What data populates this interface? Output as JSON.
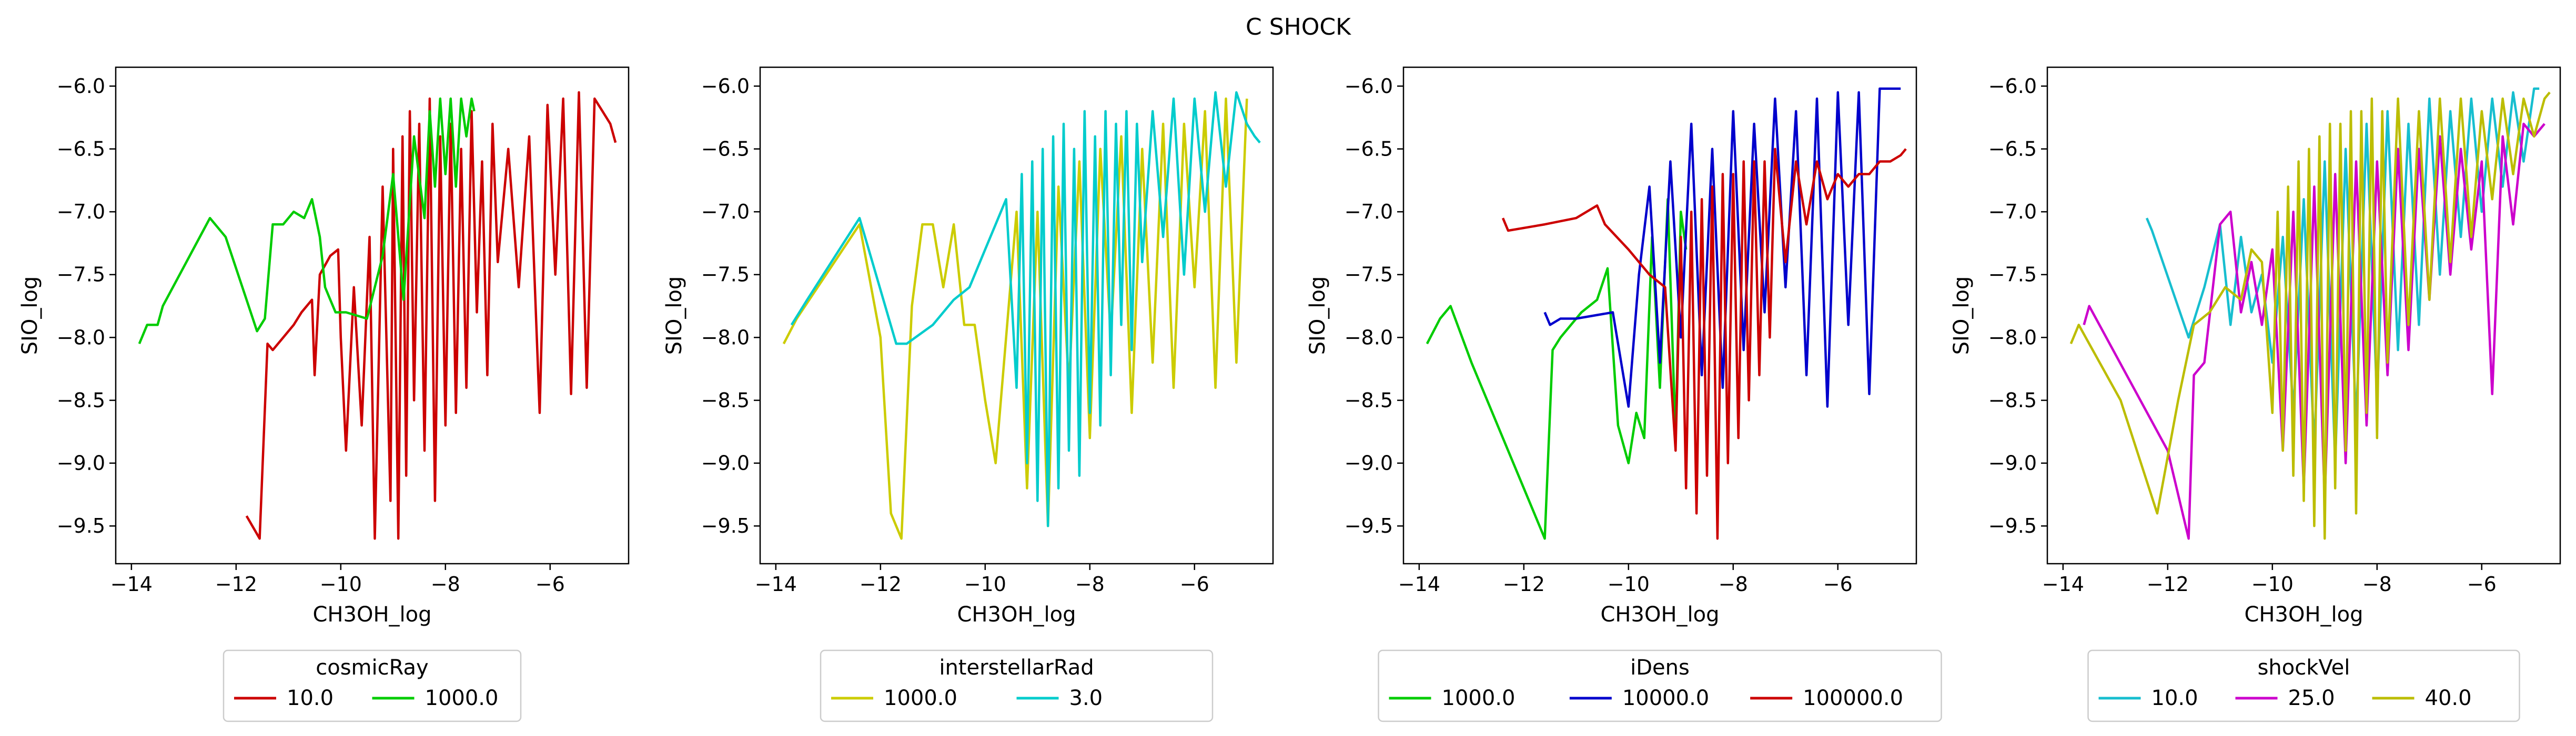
{
  "figure": {
    "title": "C SHOCK"
  },
  "chart_data": [
    {
      "type": "line",
      "xlabel": "CH3OH_log",
      "ylabel": "SIO_log",
      "xlim": [
        -14.3,
        -4.5
      ],
      "ylim": [
        -9.8,
        -5.85
      ],
      "xticks": [
        -14,
        -12,
        -10,
        -8,
        -6
      ],
      "yticks": [
        -9.5,
        -9.0,
        -8.5,
        -8.0,
        -7.5,
        -7.0,
        -6.5,
        -6.0
      ],
      "xtick_labels": [
        "−14",
        "−12",
        "−10",
        "−8",
        "−6"
      ],
      "ytick_labels": [
        "−9.5",
        "−9.0",
        "−8.5",
        "−8.0",
        "−7.5",
        "−7.0",
        "−6.5",
        "−6.0"
      ],
      "legend": {
        "title": "cosmicRay",
        "placement": "below"
      },
      "series": [
        {
          "name": "10.0",
          "color": "#cc0000",
          "x": [
            -11.8,
            -11.55,
            -11.4,
            -11.3,
            -11.1,
            -10.9,
            -10.75,
            -10.55,
            -10.5,
            -10.4,
            -10.2,
            -10.05,
            -10.0,
            -9.9,
            -9.75,
            -9.6,
            -9.45,
            -9.35,
            -9.2,
            -9.05,
            -9.0,
            -8.9,
            -8.82,
            -8.75,
            -8.68,
            -8.6,
            -8.5,
            -8.4,
            -8.3,
            -8.2,
            -8.1,
            -8.0,
            -7.9,
            -7.8,
            -7.7,
            -7.6,
            -7.5,
            -7.4,
            -7.3,
            -7.2,
            -7.1,
            -7.0,
            -6.8,
            -6.6,
            -6.4,
            -6.2,
            -6.05,
            -5.9,
            -5.75,
            -5.6,
            -5.45,
            -5.3,
            -5.15,
            -5.0,
            -4.85,
            -4.75
          ],
          "y": [
            -9.42,
            -9.6,
            -8.05,
            -8.1,
            -8.0,
            -7.9,
            -7.8,
            -7.7,
            -8.3,
            -7.5,
            -7.35,
            -7.3,
            -8.0,
            -8.9,
            -7.6,
            -8.7,
            -7.2,
            -9.6,
            -6.8,
            -9.3,
            -6.5,
            -9.6,
            -6.4,
            -9.1,
            -6.2,
            -8.5,
            -6.3,
            -8.9,
            -6.1,
            -9.3,
            -6.4,
            -8.7,
            -6.3,
            -8.6,
            -6.5,
            -8.4,
            -6.2,
            -7.8,
            -6.6,
            -8.3,
            -6.3,
            -7.4,
            -6.5,
            -7.6,
            -6.4,
            -8.6,
            -6.15,
            -7.5,
            -6.1,
            -8.45,
            -6.05,
            -8.4,
            -6.1,
            -6.2,
            -6.3,
            -6.45
          ]
        },
        {
          "name": "1000.0",
          "color": "#00cc00",
          "x": [
            -13.85,
            -13.7,
            -13.5,
            -13.4,
            -12.5,
            -12.2,
            -11.8,
            -11.6,
            -11.45,
            -11.3,
            -11.1,
            -10.9,
            -10.7,
            -10.55,
            -10.4,
            -10.3,
            -10.2,
            -10.1,
            -9.9,
            -9.5,
            -9.2,
            -9.0,
            -8.8,
            -8.6,
            -8.4,
            -8.3,
            -8.2,
            -8.1,
            -8.0,
            -7.9,
            -7.8,
            -7.7,
            -7.6,
            -7.5,
            -7.45
          ],
          "y": [
            -8.05,
            -7.9,
            -7.9,
            -7.75,
            -7.05,
            -7.2,
            -7.7,
            -7.95,
            -7.85,
            -7.1,
            -7.1,
            -7.0,
            -7.05,
            -6.9,
            -7.2,
            -7.6,
            -7.7,
            -7.8,
            -7.8,
            -7.85,
            -7.35,
            -6.7,
            -7.7,
            -6.4,
            -7.05,
            -6.2,
            -6.8,
            -6.1,
            -6.7,
            -6.1,
            -6.8,
            -6.1,
            -6.4,
            -6.1,
            -6.2
          ]
        }
      ]
    },
    {
      "type": "line",
      "xlabel": "CH3OH_log",
      "ylabel": "SIO_log",
      "xlim": [
        -14.3,
        -4.5
      ],
      "ylim": [
        -9.8,
        -5.85
      ],
      "xticks": [
        -14,
        -12,
        -10,
        -8,
        -6
      ],
      "yticks": [
        -9.5,
        -9.0,
        -8.5,
        -8.0,
        -7.5,
        -7.0,
        -6.5,
        -6.0
      ],
      "xtick_labels": [
        "−14",
        "−12",
        "−10",
        "−8",
        "−6"
      ],
      "ytick_labels": [
        "−9.5",
        "−9.0",
        "−8.5",
        "−8.0",
        "−7.5",
        "−7.0",
        "−6.5",
        "−6.0"
      ],
      "legend": {
        "title": "interstellarRad",
        "placement": "below"
      },
      "series": [
        {
          "name": "1000.0",
          "color": "#cccc00",
          "x": [
            -13.85,
            -13.6,
            -12.4,
            -12.0,
            -11.8,
            -11.6,
            -11.4,
            -11.2,
            -11.0,
            -10.8,
            -10.6,
            -10.4,
            -10.2,
            -10.0,
            -9.8,
            -9.6,
            -9.4,
            -9.2,
            -9.0,
            -8.8,
            -8.6,
            -8.4,
            -8.2,
            -8.0,
            -7.8,
            -7.6,
            -7.4,
            -7.2,
            -7.0,
            -6.8,
            -6.6,
            -6.4,
            -6.2,
            -6.0,
            -5.8,
            -5.6,
            -5.4,
            -5.2,
            -5.0
          ],
          "y": [
            -8.05,
            -7.85,
            -7.1,
            -8.0,
            -9.4,
            -9.6,
            -7.75,
            -7.1,
            -7.1,
            -7.6,
            -7.1,
            -7.9,
            -7.9,
            -8.5,
            -9.0,
            -8.0,
            -7.0,
            -9.2,
            -7.0,
            -9.5,
            -6.8,
            -8.4,
            -6.6,
            -8.8,
            -6.5,
            -8.0,
            -6.4,
            -8.6,
            -6.5,
            -8.2,
            -6.3,
            -8.4,
            -6.3,
            -7.6,
            -6.2,
            -8.4,
            -6.1,
            -8.2,
            -6.1
          ]
        },
        {
          "name": "3.0",
          "color": "#00cccc",
          "x": [
            -13.7,
            -13.4,
            -12.4,
            -11.7,
            -11.5,
            -11.0,
            -10.6,
            -10.3,
            -10.0,
            -9.8,
            -9.6,
            -9.4,
            -9.3,
            -9.2,
            -9.1,
            -9.0,
            -8.9,
            -8.8,
            -8.7,
            -8.6,
            -8.5,
            -8.4,
            -8.3,
            -8.2,
            -8.1,
            -8.0,
            -7.9,
            -7.8,
            -7.7,
            -7.6,
            -7.5,
            -7.4,
            -7.3,
            -7.2,
            -7.1,
            -7.0,
            -6.8,
            -6.6,
            -6.4,
            -6.2,
            -6.0,
            -5.8,
            -5.6,
            -5.4,
            -5.2,
            -5.0,
            -4.85,
            -4.75
          ],
          "y": [
            -7.9,
            -7.7,
            -7.05,
            -8.05,
            -8.05,
            -7.9,
            -7.7,
            -7.6,
            -7.3,
            -7.1,
            -6.9,
            -8.4,
            -6.7,
            -9.0,
            -6.6,
            -9.3,
            -6.5,
            -9.5,
            -6.4,
            -9.2,
            -6.3,
            -8.9,
            -6.5,
            -9.1,
            -6.2,
            -8.6,
            -6.4,
            -8.7,
            -6.2,
            -8.3,
            -6.3,
            -7.9,
            -6.2,
            -8.1,
            -6.3,
            -7.4,
            -6.2,
            -7.2,
            -6.1,
            -7.5,
            -6.1,
            -7.0,
            -6.05,
            -6.8,
            -6.05,
            -6.3,
            -6.4,
            -6.45
          ]
        }
      ]
    },
    {
      "type": "line",
      "xlabel": "CH3OH_log",
      "ylabel": "SIO_log",
      "xlim": [
        -14.3,
        -4.5
      ],
      "ylim": [
        -9.8,
        -5.85
      ],
      "xticks": [
        -14,
        -12,
        -10,
        -8,
        -6
      ],
      "yticks": [
        -9.5,
        -9.0,
        -8.5,
        -8.0,
        -7.5,
        -7.0,
        -6.5,
        -6.0
      ],
      "xtick_labels": [
        "−14",
        "−12",
        "−10",
        "−8",
        "−6"
      ],
      "ytick_labels": [
        "−9.5",
        "−9.0",
        "−8.5",
        "−8.0",
        "−7.5",
        "−7.0",
        "−6.5",
        "−6.0"
      ],
      "legend": {
        "title": "iDens",
        "placement": "below"
      },
      "series": [
        {
          "name": "1000.0",
          "color": "#00cc00",
          "x": [
            -13.85,
            -13.6,
            -13.4,
            -13.0,
            -12.2,
            -11.8,
            -11.6,
            -11.45,
            -11.3,
            -11.1,
            -10.9,
            -10.6,
            -10.4,
            -10.2,
            -10.0,
            -9.85,
            -9.7,
            -9.55,
            -9.4,
            -9.25,
            -9.1,
            -9.0,
            -8.9
          ],
          "y": [
            -8.05,
            -7.85,
            -7.75,
            -8.2,
            -9.0,
            -9.4,
            -9.6,
            -8.1,
            -8.0,
            -7.9,
            -7.8,
            -7.7,
            -7.45,
            -8.7,
            -9.0,
            -8.6,
            -8.8,
            -7.2,
            -8.4,
            -6.9,
            -8.8,
            -7.0,
            -7.3
          ]
        },
        {
          "name": "10000.0",
          "color": "#0000cc",
          "x": [
            -11.6,
            -11.5,
            -11.3,
            -11.0,
            -10.3,
            -10.0,
            -9.8,
            -9.6,
            -9.4,
            -9.2,
            -9.0,
            -8.8,
            -8.6,
            -8.4,
            -8.2,
            -8.0,
            -7.8,
            -7.6,
            -7.4,
            -7.2,
            -7.0,
            -6.8,
            -6.6,
            -6.4,
            -6.2,
            -6.0,
            -5.8,
            -5.6,
            -5.4,
            -5.2,
            -5.0,
            -4.8
          ],
          "y": [
            -7.8,
            -7.9,
            -7.85,
            -7.85,
            -7.8,
            -8.55,
            -7.5,
            -6.8,
            -8.2,
            -6.6,
            -8.0,
            -6.3,
            -8.3,
            -6.5,
            -8.4,
            -6.2,
            -8.1,
            -6.3,
            -7.8,
            -6.1,
            -7.6,
            -6.2,
            -8.3,
            -6.1,
            -8.55,
            -6.05,
            -7.9,
            -6.05,
            -8.45,
            -6.02,
            -6.02,
            -6.02
          ]
        },
        {
          "name": "100000.0",
          "color": "#cc0000",
          "x": [
            -12.4,
            -12.3,
            -11.6,
            -11.0,
            -10.6,
            -10.45,
            -10.0,
            -9.6,
            -9.3,
            -9.1,
            -9.0,
            -8.9,
            -8.8,
            -8.7,
            -8.6,
            -8.5,
            -8.4,
            -8.3,
            -8.2,
            -8.1,
            -8.0,
            -7.9,
            -7.8,
            -7.7,
            -7.6,
            -7.5,
            -7.4,
            -7.3,
            -7.2,
            -7.0,
            -6.8,
            -6.6,
            -6.4,
            -6.2,
            -6.0,
            -5.8,
            -5.6,
            -5.4,
            -5.2,
            -5.0,
            -4.8,
            -4.7
          ],
          "y": [
            -7.05,
            -7.15,
            -7.1,
            -7.05,
            -6.95,
            -7.1,
            -7.3,
            -7.5,
            -7.6,
            -8.9,
            -7.2,
            -9.2,
            -7.0,
            -9.4,
            -6.9,
            -9.1,
            -6.8,
            -9.6,
            -6.7,
            -9.0,
            -6.7,
            -8.8,
            -6.6,
            -8.5,
            -6.6,
            -8.3,
            -6.6,
            -8.0,
            -6.5,
            -7.4,
            -6.6,
            -7.1,
            -6.6,
            -6.9,
            -6.7,
            -6.8,
            -6.7,
            -6.7,
            -6.6,
            -6.6,
            -6.55,
            -6.5
          ]
        }
      ]
    },
    {
      "type": "line",
      "xlabel": "CH3OH_log",
      "ylabel": "SIO_log",
      "xlim": [
        -14.3,
        -4.5
      ],
      "ylim": [
        -9.8,
        -5.85
      ],
      "xticks": [
        -14,
        -12,
        -10,
        -8,
        -6
      ],
      "yticks": [
        -9.5,
        -9.0,
        -8.5,
        -8.0,
        -7.5,
        -7.0,
        -6.5,
        -6.0
      ],
      "xtick_labels": [
        "−14",
        "−12",
        "−10",
        "−8",
        "−6"
      ],
      "ytick_labels": [
        "−9.5",
        "−9.0",
        "−8.5",
        "−8.0",
        "−7.5",
        "−7.0",
        "−6.5",
        "−6.0"
      ],
      "legend": {
        "title": "shockVel",
        "placement": "below"
      },
      "series": [
        {
          "name": "10.0",
          "color": "#17becf",
          "x": [
            -12.4,
            -12.3,
            -11.6,
            -11.3,
            -11.0,
            -10.8,
            -10.6,
            -10.4,
            -10.2,
            -10.0,
            -9.8,
            -9.6,
            -9.4,
            -9.2,
            -9.0,
            -8.8,
            -8.6,
            -8.4,
            -8.2,
            -8.0,
            -7.8,
            -7.6,
            -7.4,
            -7.2,
            -7.0,
            -6.8,
            -6.6,
            -6.4,
            -6.2,
            -6.0,
            -5.8,
            -5.6,
            -5.4,
            -5.2,
            -5.0,
            -4.9
          ],
          "y": [
            -7.05,
            -7.15,
            -8.0,
            -7.6,
            -7.1,
            -7.9,
            -7.2,
            -7.8,
            -7.5,
            -8.2,
            -7.2,
            -8.6,
            -6.9,
            -8.9,
            -6.6,
            -9.0,
            -6.5,
            -8.7,
            -6.3,
            -8.5,
            -6.2,
            -8.1,
            -6.3,
            -7.9,
            -6.1,
            -7.5,
            -6.2,
            -7.2,
            -6.1,
            -7.0,
            -6.1,
            -6.8,
            -6.05,
            -6.6,
            -6.02,
            -6.02
          ]
        },
        {
          "name": "25.0",
          "color": "#cc00cc",
          "x": [
            -13.6,
            -13.5,
            -12.0,
            -11.6,
            -11.5,
            -11.3,
            -11.0,
            -10.8,
            -10.6,
            -10.4,
            -10.2,
            -10.0,
            -9.8,
            -9.6,
            -9.4,
            -9.2,
            -9.0,
            -8.8,
            -8.6,
            -8.4,
            -8.2,
            -8.0,
            -7.8,
            -7.6,
            -7.4,
            -7.2,
            -7.0,
            -6.8,
            -6.6,
            -6.4,
            -6.2,
            -6.0,
            -5.8,
            -5.6,
            -5.4,
            -5.2,
            -5.0,
            -4.8
          ],
          "y": [
            -7.9,
            -7.75,
            -8.9,
            -9.6,
            -8.3,
            -8.2,
            -7.1,
            -7.0,
            -7.8,
            -7.4,
            -7.9,
            -7.3,
            -8.9,
            -7.0,
            -9.2,
            -6.8,
            -9.3,
            -6.7,
            -9.0,
            -6.6,
            -8.7,
            -6.6,
            -8.3,
            -6.5,
            -8.1,
            -6.5,
            -7.7,
            -6.4,
            -7.5,
            -6.5,
            -7.3,
            -6.6,
            -8.45,
            -6.4,
            -7.1,
            -6.3,
            -6.4,
            -6.3
          ]
        },
        {
          "name": "40.0",
          "color": "#bcbd00",
          "x": [
            -13.85,
            -13.7,
            -12.9,
            -12.2,
            -11.8,
            -11.5,
            -11.2,
            -10.9,
            -10.6,
            -10.4,
            -10.2,
            -10.0,
            -9.9,
            -9.8,
            -9.7,
            -9.6,
            -9.5,
            -9.4,
            -9.3,
            -9.2,
            -9.1,
            -9.0,
            -8.9,
            -8.8,
            -8.7,
            -8.6,
            -8.5,
            -8.4,
            -8.3,
            -8.2,
            -8.1,
            -8.0,
            -7.9,
            -7.8,
            -7.6,
            -7.4,
            -7.2,
            -7.0,
            -6.8,
            -6.6,
            -6.4,
            -6.2,
            -6.0,
            -5.8,
            -5.6,
            -5.4,
            -5.2,
            -5.0,
            -4.8,
            -4.7
          ],
          "y": [
            -8.05,
            -7.9,
            -8.5,
            -9.4,
            -8.5,
            -7.9,
            -7.8,
            -7.6,
            -7.7,
            -7.3,
            -7.4,
            -8.6,
            -7.0,
            -8.9,
            -6.8,
            -9.1,
            -6.6,
            -9.3,
            -6.5,
            -9.5,
            -6.4,
            -9.6,
            -6.3,
            -9.2,
            -6.3,
            -8.9,
            -6.2,
            -9.4,
            -6.2,
            -8.6,
            -6.1,
            -8.8,
            -6.2,
            -8.2,
            -6.1,
            -7.9,
            -6.2,
            -7.7,
            -6.1,
            -7.4,
            -6.1,
            -7.2,
            -6.2,
            -6.9,
            -6.1,
            -6.7,
            -6.1,
            -6.4,
            -6.1,
            -6.05
          ]
        }
      ]
    }
  ]
}
